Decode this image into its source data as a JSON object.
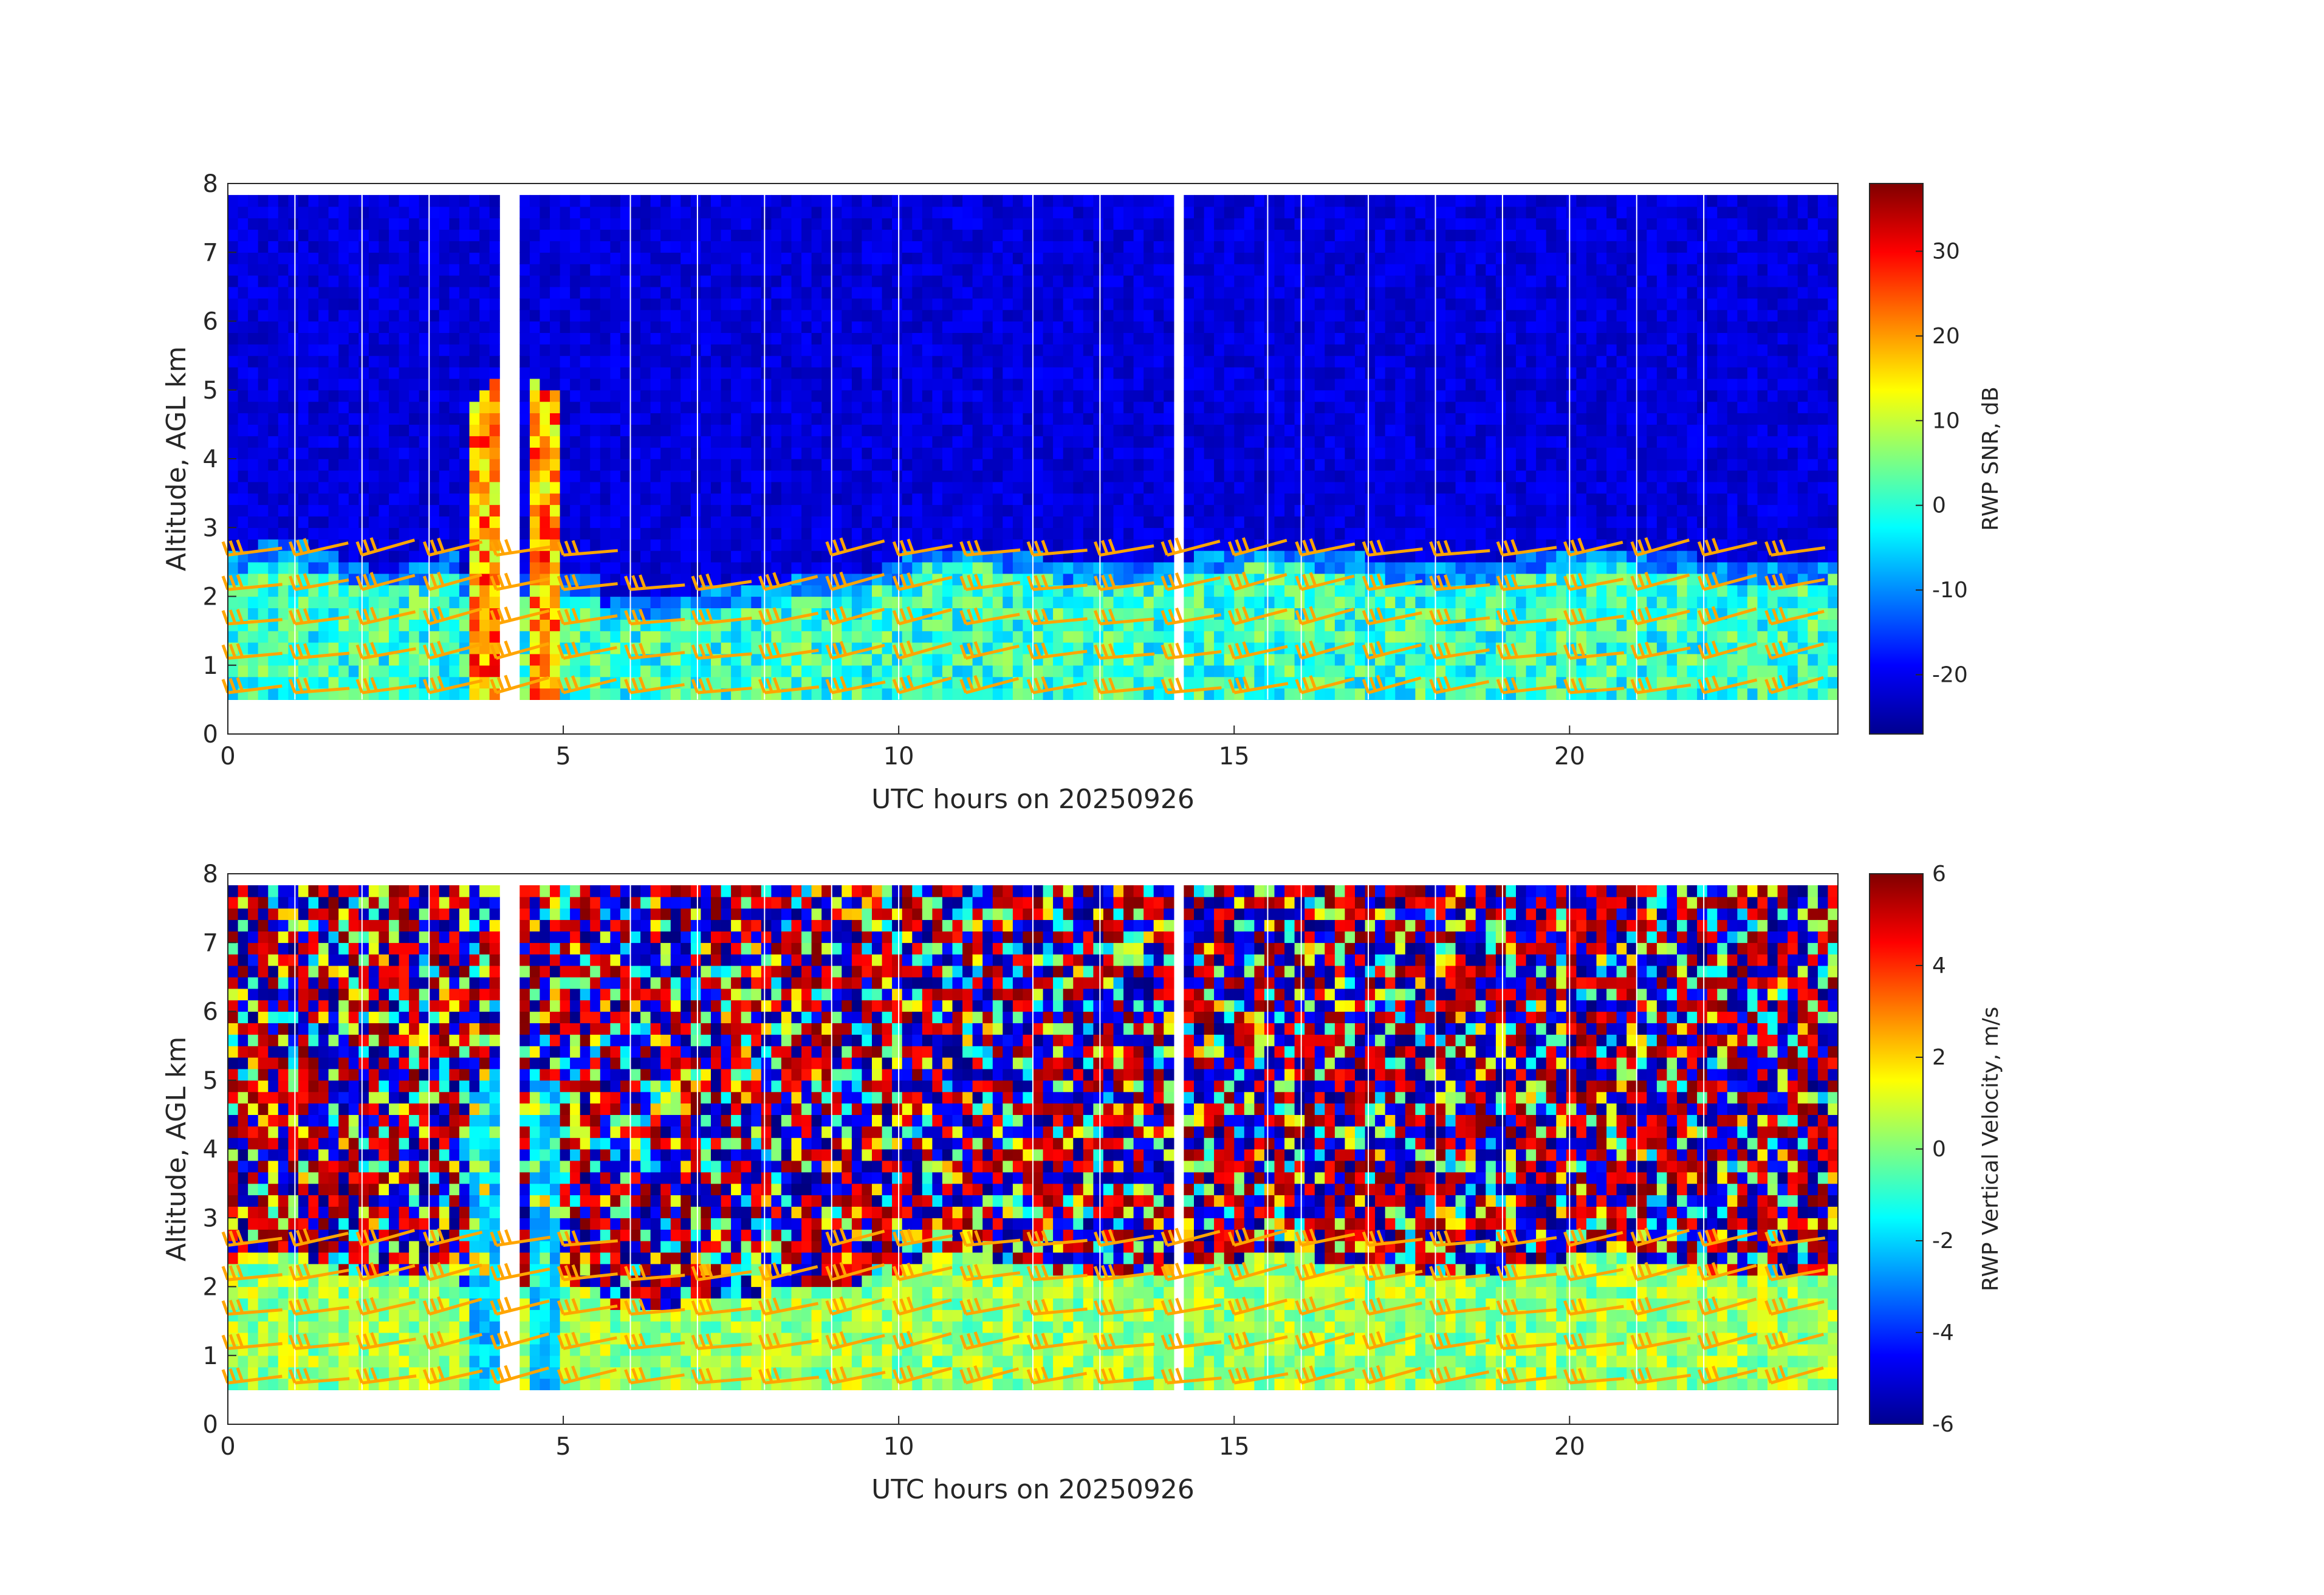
{
  "chart_data": [
    {
      "type": "heatmap",
      "panel": "top",
      "xlabel": "UTC hours on 20250926",
      "ylabel": "Altitude, AGL km",
      "xlim": [
        0,
        24
      ],
      "ylim": [
        0,
        8
      ],
      "xticks": [
        "0",
        "5",
        "10",
        "15",
        "20"
      ],
      "yticks": [
        "0",
        "1",
        "2",
        "3",
        "4",
        "5",
        "6",
        "7",
        "8"
      ],
      "colorbar": {
        "label": "RWP SNR, dB",
        "range": [
          -27,
          38
        ],
        "ticks": [
          "-20",
          "-10",
          "0",
          "10",
          "20",
          "30"
        ],
        "colormap": "jet"
      },
      "overlay": "orange wind barbs at altitudes ~0.5–3 km, hourly",
      "barb_color": "#ffa500"
    },
    {
      "type": "heatmap",
      "panel": "bottom",
      "xlabel": "UTC hours on 20250926",
      "ylabel": "Altitude, AGL km",
      "xlim": [
        0,
        24
      ],
      "ylim": [
        0,
        8
      ],
      "xticks": [
        "0",
        "5",
        "10",
        "15",
        "20"
      ],
      "yticks": [
        "0",
        "1",
        "2",
        "3",
        "4",
        "5",
        "6",
        "7",
        "8"
      ],
      "colorbar": {
        "label": "RWP Vertical Velocity, m/s",
        "range": [
          -6,
          6
        ],
        "ticks": [
          "-6",
          "-4",
          "-2",
          "0",
          "2",
          "4",
          "6"
        ],
        "colormap": "jet"
      },
      "overlay": "orange wind barbs at altitudes ~0.5–3 km, hourly",
      "barb_color": "#ffa500"
    }
  ]
}
